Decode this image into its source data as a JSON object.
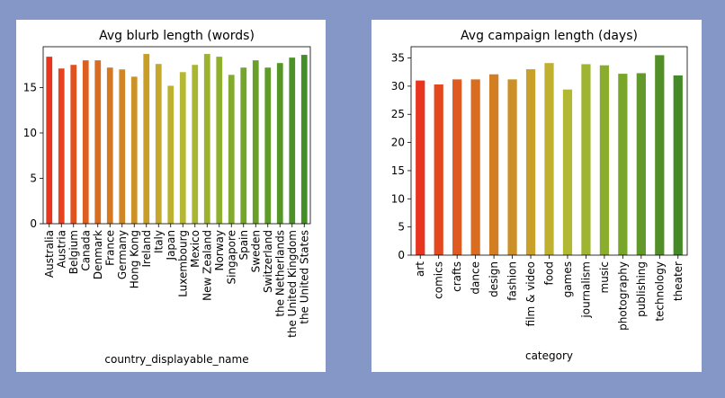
{
  "background_color": "#8497c6",
  "chart_data": [
    {
      "type": "bar",
      "title": "Avg blurb length (words)",
      "xlabel": "country_displayable_name",
      "ylabel": "",
      "ylim": [
        0,
        19.5
      ],
      "yticks": [
        0,
        5,
        10,
        15
      ],
      "grid": false,
      "categories": [
        "Australia",
        "Austria",
        "Belgium",
        "Canada",
        "Denmark",
        "France",
        "Germany",
        "Hong Kong",
        "Ireland",
        "Italy",
        "Japan",
        "Luxembourg",
        "Mexico",
        "New Zealand",
        "Norway",
        "Singapore",
        "Spain",
        "Sweden",
        "Switzerland",
        "the Netherlands",
        "the United Kingdom",
        "the United States"
      ],
      "values": [
        18.4,
        17.1,
        17.5,
        18.0,
        18.0,
        17.2,
        17.0,
        16.2,
        18.7,
        17.6,
        15.2,
        16.7,
        17.5,
        18.7,
        18.4,
        16.4,
        17.2,
        18.0,
        17.2,
        17.7,
        18.3,
        18.6
      ],
      "colors": [
        "#e8351f",
        "#e5441f",
        "#e1521f",
        "#dd5f20",
        "#d86c21",
        "#d47922",
        "#d08625",
        "#cc9127",
        "#c89e29",
        "#c3a82c",
        "#bcb230",
        "#b4b833",
        "#a8b631",
        "#9cb22f",
        "#8faf2e",
        "#82aa2c",
        "#76a52b",
        "#6aa029",
        "#5f9b28",
        "#559727",
        "#4c9226",
        "#448e25"
      ]
    },
    {
      "type": "bar",
      "title": "Avg campaign length (days)",
      "xlabel": "category",
      "ylabel": "",
      "ylim": [
        0,
        37
      ],
      "yticks": [
        0,
        5,
        10,
        15,
        20,
        25,
        30,
        35
      ],
      "grid": false,
      "categories": [
        "art",
        "comics",
        "crafts",
        "dance",
        "design",
        "fashion",
        "film & video",
        "food",
        "games",
        "journalism",
        "music",
        "photography",
        "publishing",
        "technology",
        "theater"
      ],
      "values": [
        31.0,
        30.3,
        31.2,
        31.2,
        32.1,
        31.2,
        33.0,
        34.1,
        29.4,
        33.9,
        33.7,
        32.2,
        32.3,
        35.5,
        31.9
      ],
      "colors": [
        "#e8351f",
        "#e3481f",
        "#de5a20",
        "#d86c21",
        "#d37e23",
        "#cd9027",
        "#c8a02a",
        "#c0b02f",
        "#b2b833",
        "#9fb430",
        "#8bad2e",
        "#77a62b",
        "#63992a",
        "#528f27",
        "#448a26"
      ]
    }
  ]
}
